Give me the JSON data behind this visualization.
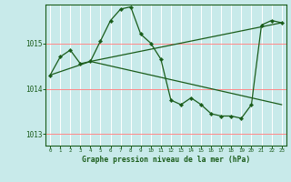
{
  "title": "Graphe pression niveau de la mer (hPa)",
  "bg_color": "#c8eaea",
  "plot_bg_color": "#c8eaea",
  "line_color": "#1a5c1a",
  "marker_color": "#1a5c1a",
  "grid_color_v": "#ffffff",
  "grid_color_h": "#ff8888",
  "axis_color": "#1a5c1a",
  "tick_color": "#1a5c1a",
  "ylim": [
    1012.75,
    1015.85
  ],
  "xlim": [
    -0.5,
    23.5
  ],
  "yticks": [
    1013,
    1014,
    1015
  ],
  "xticks": [
    0,
    1,
    2,
    3,
    4,
    5,
    6,
    7,
    8,
    9,
    10,
    11,
    12,
    13,
    14,
    15,
    16,
    17,
    18,
    19,
    20,
    21,
    22,
    23
  ],
  "series": [
    [
      0,
      1014.3
    ],
    [
      1,
      1014.7
    ],
    [
      2,
      1014.85
    ],
    [
      3,
      1014.55
    ],
    [
      4,
      1014.6
    ],
    [
      5,
      1015.05
    ],
    [
      6,
      1015.5
    ],
    [
      7,
      1015.75
    ],
    [
      8,
      1015.8
    ],
    [
      9,
      1015.2
    ],
    [
      10,
      1015.0
    ],
    [
      11,
      1014.65
    ],
    [
      12,
      1013.75
    ],
    [
      13,
      1013.65
    ],
    [
      14,
      1013.8
    ],
    [
      15,
      1013.65
    ],
    [
      16,
      1013.45
    ],
    [
      17,
      1013.4
    ],
    [
      18,
      1013.4
    ],
    [
      19,
      1013.35
    ],
    [
      20,
      1013.65
    ],
    [
      21,
      1015.4
    ],
    [
      22,
      1015.5
    ],
    [
      23,
      1015.45
    ]
  ],
  "series2": [
    [
      0,
      1014.3
    ],
    [
      4,
      1014.6
    ],
    [
      23,
      1015.45
    ]
  ],
  "series3": [
    [
      4,
      1014.6
    ],
    [
      23,
      1013.65
    ]
  ]
}
